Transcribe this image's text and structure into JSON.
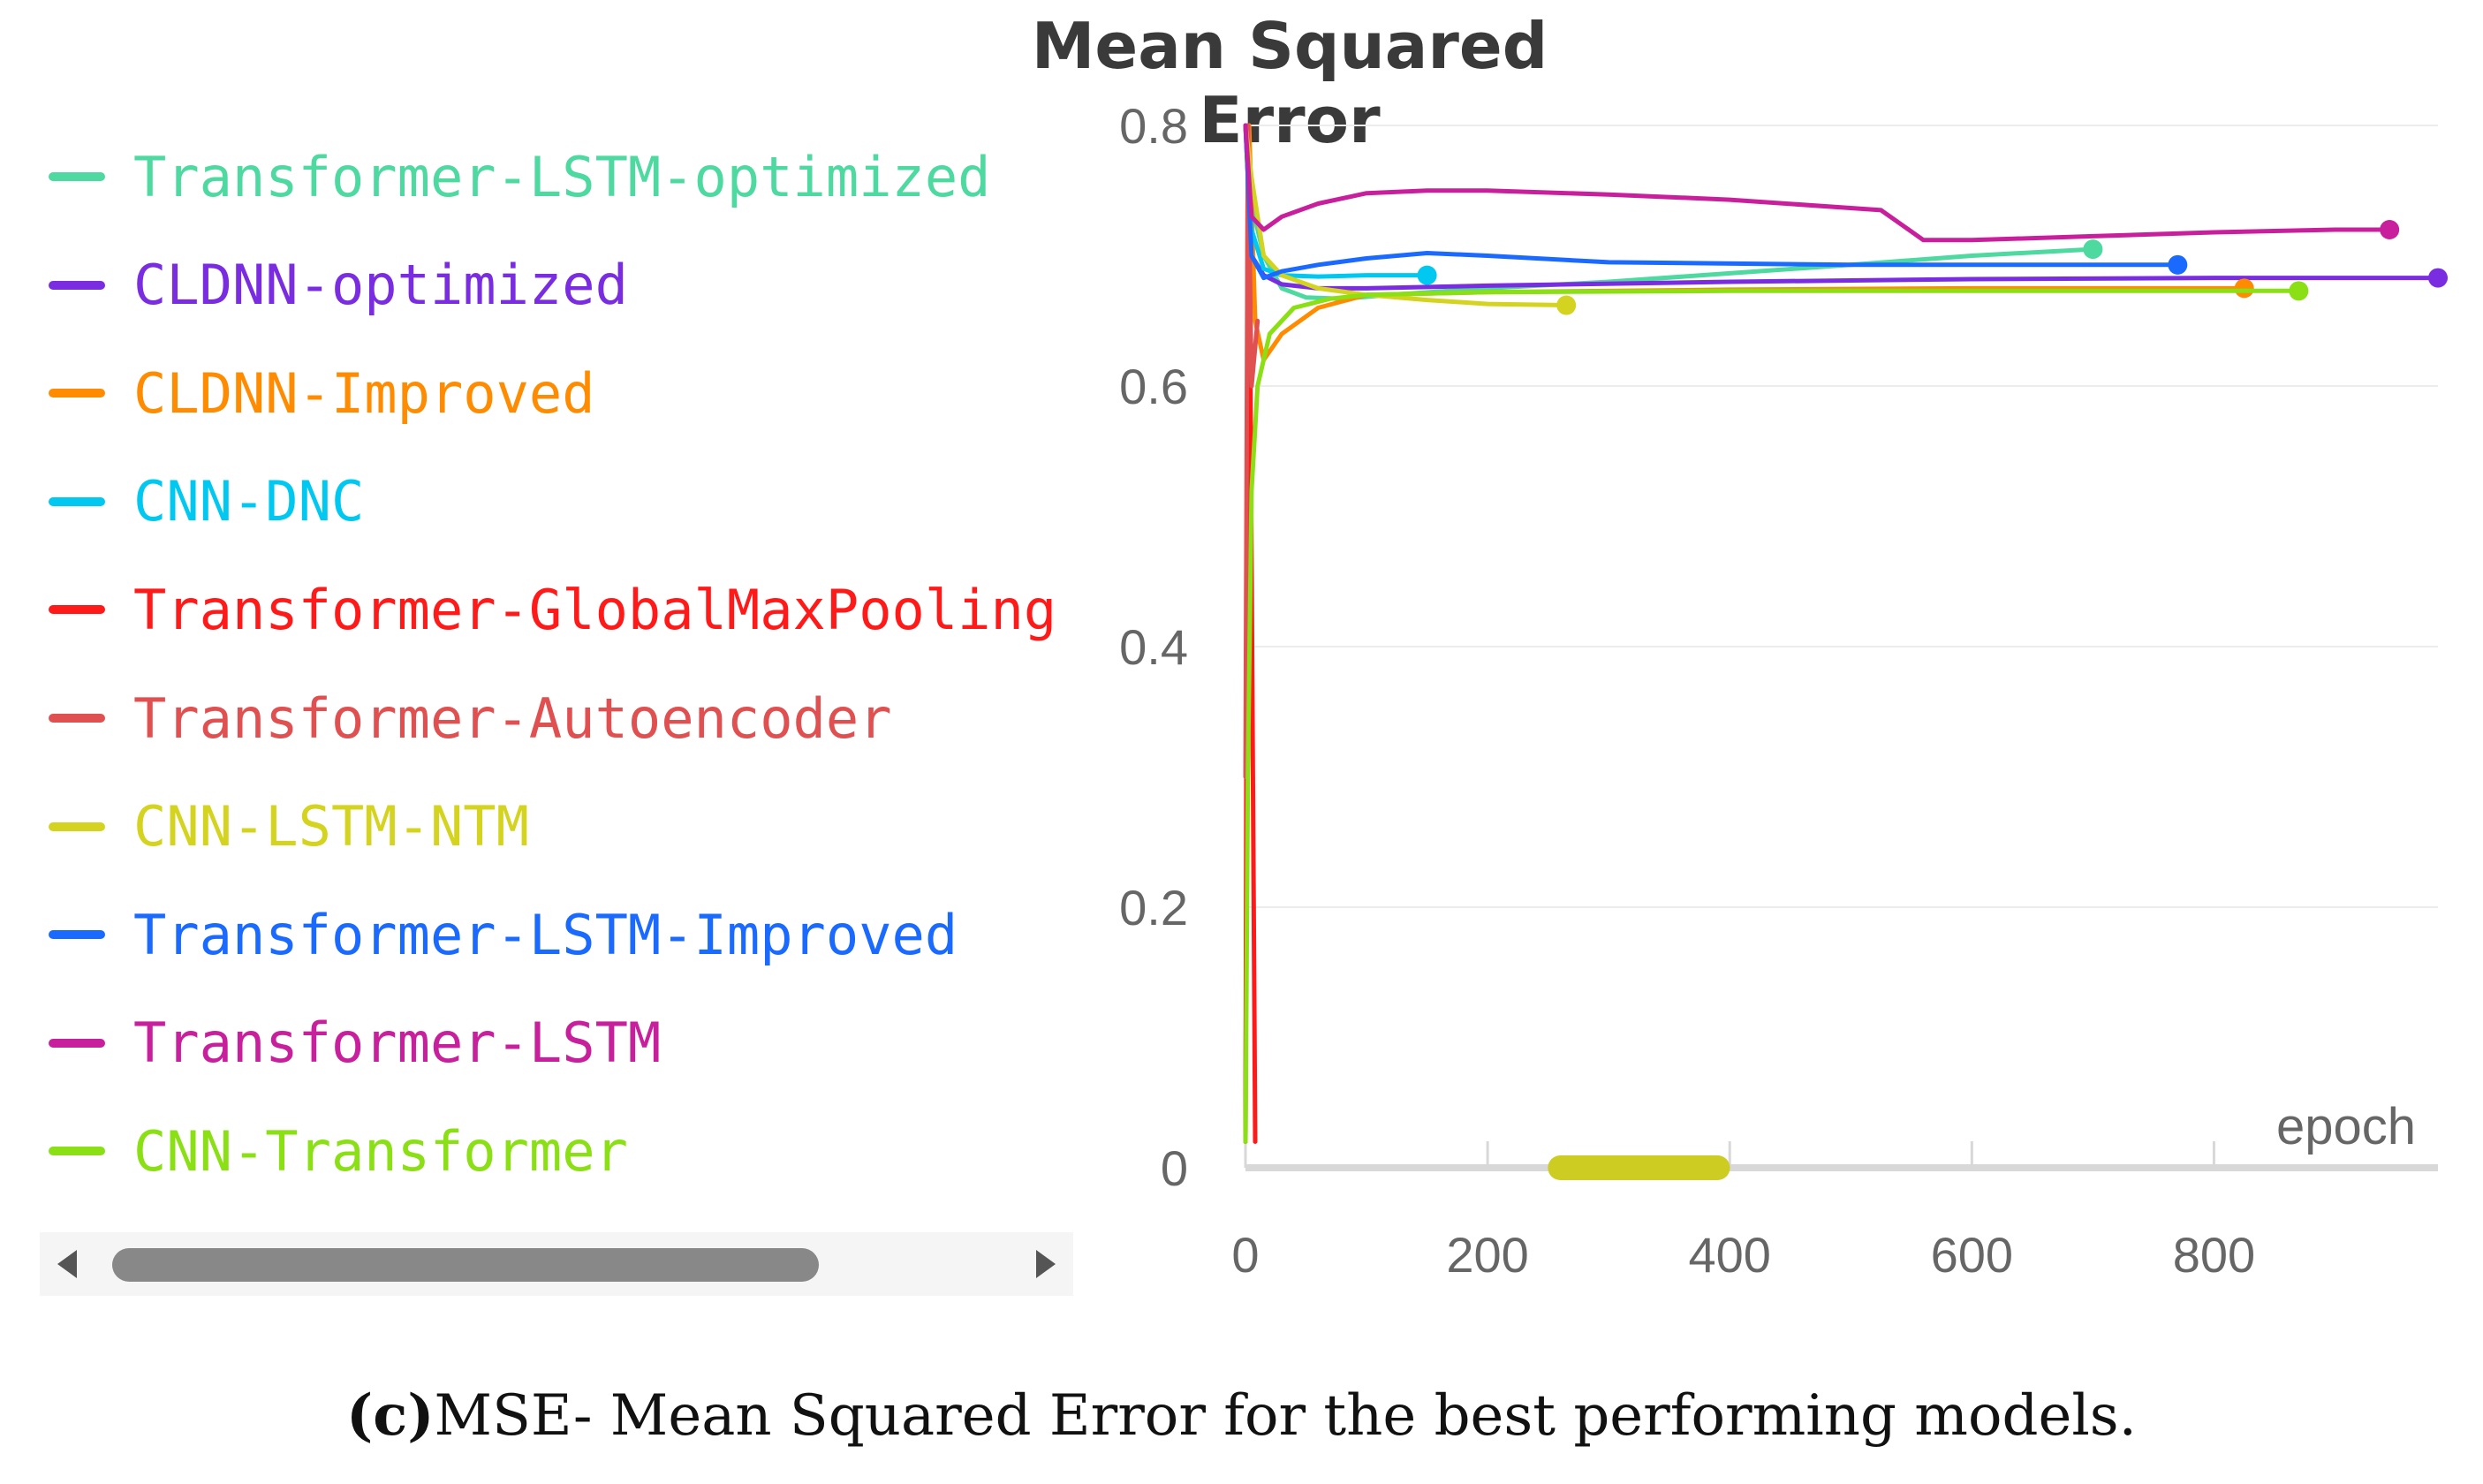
{
  "caption": {
    "label": "(c)",
    "text": "MSE- Mean Squared Error for the best performing models."
  },
  "chart_data": {
    "type": "line",
    "title": "Mean Squared Error",
    "xlabel": "epoch",
    "ylabel": "",
    "xlim": [
      0,
      985
    ],
    "ylim": [
      0,
      0.8
    ],
    "xticks": [
      0,
      200,
      400,
      600,
      800
    ],
    "yticks": [
      0,
      0.2,
      0.4,
      0.6,
      0.8
    ],
    "xtick_labels": [
      "0",
      "200",
      "400",
      "600",
      "800"
    ],
    "ytick_labels": [
      "0",
      "0.2",
      "0.4",
      "0.6",
      "0.8"
    ],
    "grid": true,
    "legend_position": "left",
    "range_selection": [
      260,
      390
    ],
    "series": [
      {
        "name": "Transformer-LSTM-optimized",
        "color": "#4dd9a0",
        "x": [
          0,
          5,
          15,
          30,
          50,
          80,
          120,
          200,
          300,
          500,
          600,
          700
        ],
        "y": [
          0.8,
          0.74,
          0.7,
          0.675,
          0.668,
          0.667,
          0.67,
          0.675,
          0.68,
          0.693,
          0.7,
          0.705
        ]
      },
      {
        "name": "CLDNN-optimized",
        "color": "#7a2de0",
        "x": [
          0,
          5,
          15,
          30,
          60,
          100,
          200,
          400,
          600,
          800,
          985
        ],
        "y": [
          0.8,
          0.7,
          0.685,
          0.678,
          0.675,
          0.675,
          0.677,
          0.68,
          0.682,
          0.683,
          0.683
        ]
      },
      {
        "name": "CLDNN-Improved",
        "color": "#ff8c00",
        "x": [
          0,
          3,
          8,
          15,
          30,
          60,
          100,
          200,
          400,
          600,
          825
        ],
        "y": [
          0.02,
          0.8,
          0.65,
          0.62,
          0.64,
          0.66,
          0.67,
          0.672,
          0.674,
          0.675,
          0.675
        ]
      },
      {
        "name": "CNN-DNC",
        "color": "#00c8f0",
        "x": [
          0,
          5,
          15,
          30,
          60,
          100,
          150
        ],
        "y": [
          0.8,
          0.72,
          0.69,
          0.685,
          0.684,
          0.685,
          0.685
        ]
      },
      {
        "name": "Transformer-GlobalMaxPooling",
        "color": "#ff1a1a",
        "x": [
          0,
          2,
          4,
          8
        ],
        "y": [
          0.02,
          0.8,
          0.62,
          0.02
        ]
      },
      {
        "name": "Transformer-Autoencoder",
        "color": "#e05050",
        "x": [
          0,
          2,
          5,
          10
        ],
        "y": [
          0.3,
          0.8,
          0.6,
          0.65
        ]
      },
      {
        "name": "CNN-LSTM-NTM",
        "color": "#d4d420",
        "x": [
          0,
          5,
          15,
          30,
          60,
          100,
          150,
          200,
          265
        ],
        "y": [
          0.8,
          0.76,
          0.7,
          0.685,
          0.675,
          0.67,
          0.666,
          0.663,
          0.662
        ]
      },
      {
        "name": "Transformer-LSTM-Improved",
        "color": "#1a6aff",
        "x": [
          0,
          5,
          15,
          30,
          60,
          100,
          150,
          200,
          300,
          500,
          700,
          770
        ],
        "y": [
          0.8,
          0.7,
          0.683,
          0.688,
          0.693,
          0.698,
          0.702,
          0.7,
          0.695,
          0.693,
          0.693,
          0.693
        ]
      },
      {
        "name": "Transformer-LSTM",
        "color": "#c8209c",
        "x": [
          0,
          5,
          15,
          30,
          60,
          100,
          150,
          200,
          300,
          400,
          525,
          560,
          600,
          700,
          800,
          900,
          945
        ],
        "y": [
          0.8,
          0.73,
          0.72,
          0.73,
          0.74,
          0.748,
          0.75,
          0.75,
          0.747,
          0.743,
          0.735,
          0.712,
          0.712,
          0.715,
          0.718,
          0.72,
          0.72
        ]
      },
      {
        "name": "CNN-Transformer",
        "color": "#8ae014",
        "x": [
          0,
          2,
          5,
          10,
          20,
          40,
          70,
          100,
          200,
          400,
          600,
          870
        ],
        "y": [
          0.02,
          0.3,
          0.52,
          0.6,
          0.64,
          0.66,
          0.667,
          0.67,
          0.672,
          0.673,
          0.673,
          0.673
        ]
      }
    ]
  }
}
